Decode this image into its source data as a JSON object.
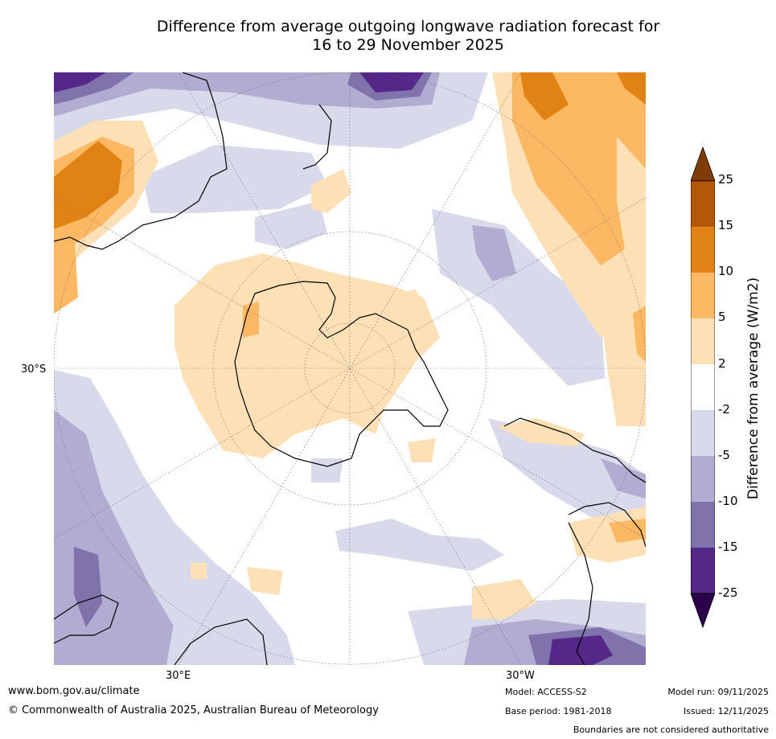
{
  "title_line1": "Difference from average outgoing longwave radiation forecast for",
  "title_line2": "16 to 29 November 2025",
  "map": {
    "projection": "south-polar stereographic",
    "lat_labels": [
      "30°S"
    ],
    "lon_labels": [
      "30°E",
      "30°W"
    ]
  },
  "colorbar": {
    "label": "Difference from average (W/m2)",
    "ticks": [
      "25",
      "15",
      "10",
      "5",
      "2",
      "-2",
      "-5",
      "-10",
      "-15",
      "-25"
    ],
    "colors": {
      "gt25": "#7f3b08",
      "15_25": "#b35806",
      "10_15": "#e08214",
      "5_10": "#fdb863",
      "2_5": "#fee0b6",
      "neutral": "#ffffff",
      "m2_m5": "#d8daeb",
      "m5_m10": "#b2abd2",
      "m10_m15": "#8073ac",
      "m15_m25": "#542788",
      "lt_m25": "#2d004b"
    }
  },
  "footer": {
    "website": "www.bom.gov.au/climate",
    "copyright": "© Commonwealth of Australia 2025, Australian Bureau of Meteorology",
    "model": "Model: ACCESS-S2",
    "base_period": "Base period: 1981-2018",
    "model_run": "Model run: 09/11/2025",
    "issued": "Issued: 12/11/2025",
    "disclaimer": "Boundaries are not considered authoritative"
  }
}
